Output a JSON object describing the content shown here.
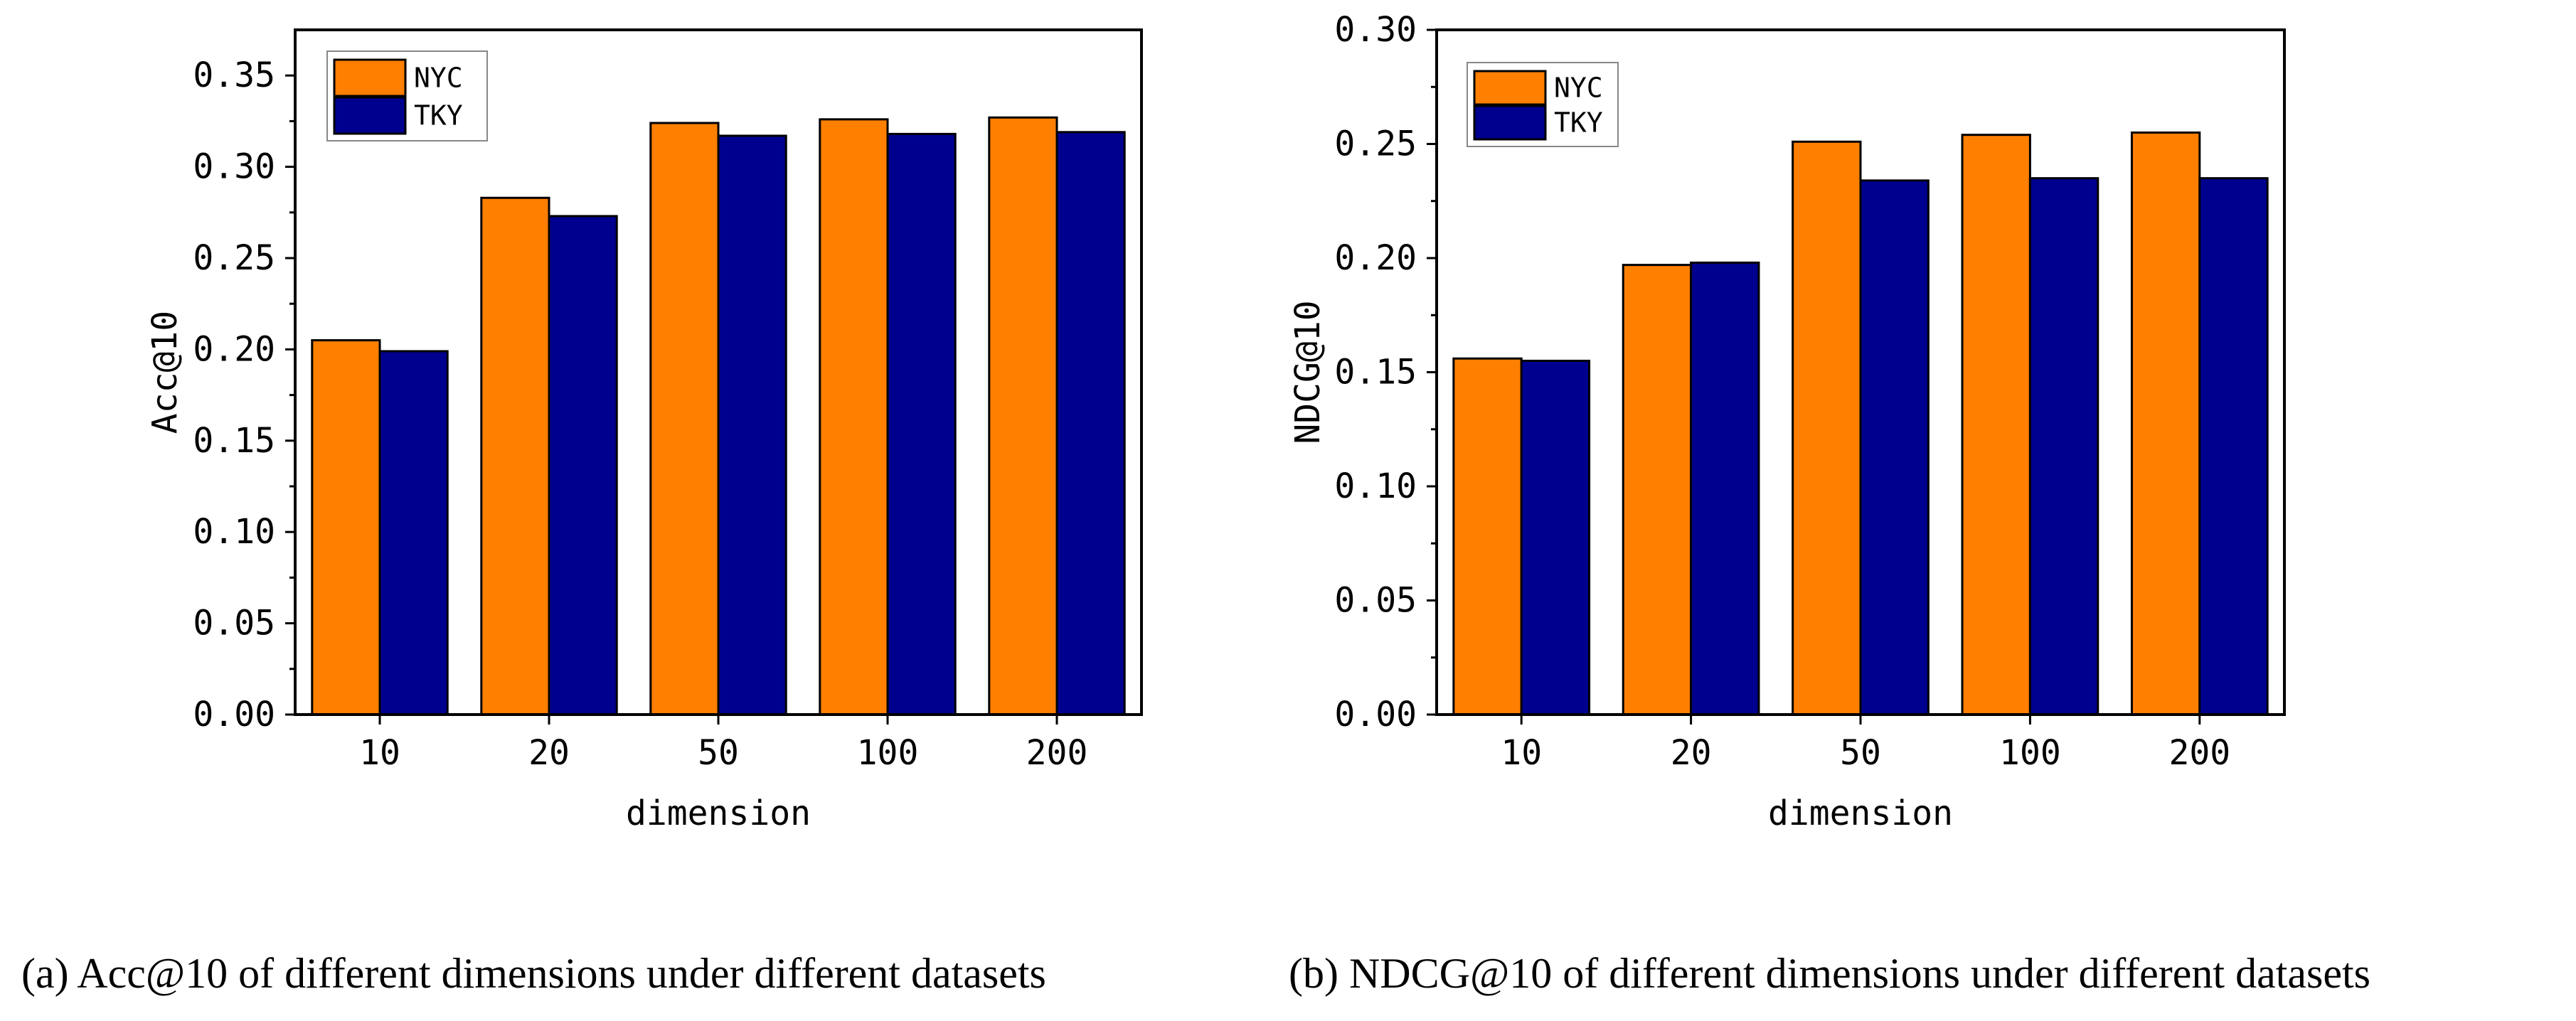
{
  "colors": {
    "nyc": "#FF7F00",
    "tky": "#00008F",
    "axis": "#000000"
  },
  "chart_data": [
    {
      "type": "bar",
      "title": "",
      "caption": "(a) Acc@10 of different dimensions under different datasets",
      "xlabel": "dimension",
      "ylabel": "Acc@10",
      "categories": [
        "10",
        "20",
        "50",
        "100",
        "200"
      ],
      "yticks": [
        "0.00",
        "0.05",
        "0.10",
        "0.15",
        "0.20",
        "0.25",
        "0.30",
        "0.35"
      ],
      "ylim": [
        0,
        0.375
      ],
      "legend_position": "top-left",
      "series": [
        {
          "name": "NYC",
          "values": [
            0.205,
            0.283,
            0.324,
            0.326,
            0.327
          ]
        },
        {
          "name": "TKY",
          "values": [
            0.199,
            0.273,
            0.317,
            0.318,
            0.319
          ]
        }
      ]
    },
    {
      "type": "bar",
      "title": "",
      "caption": "(b) NDCG@10 of different dimensions under different datasets",
      "xlabel": "dimension",
      "ylabel": "NDCG@10",
      "categories": [
        "10",
        "20",
        "50",
        "100",
        "200"
      ],
      "yticks": [
        "0.00",
        "0.05",
        "0.10",
        "0.15",
        "0.20",
        "0.25",
        "0.30"
      ],
      "ylim": [
        0,
        0.3
      ],
      "legend_position": "top-left",
      "series": [
        {
          "name": "NYC",
          "values": [
            0.156,
            0.197,
            0.251,
            0.254,
            0.255
          ]
        },
        {
          "name": "TKY",
          "values": [
            0.155,
            0.198,
            0.234,
            0.235,
            0.235
          ]
        }
      ]
    }
  ]
}
